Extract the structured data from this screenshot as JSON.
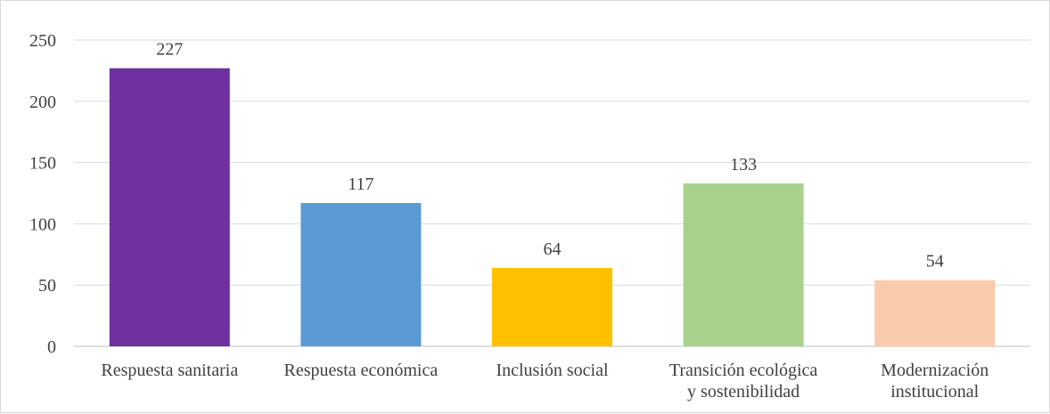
{
  "chart_data": {
    "type": "bar",
    "categories": [
      [
        "Respuesta sanitaria"
      ],
      [
        "Respuesta económica"
      ],
      [
        "Inclusión social"
      ],
      [
        "Transición ecológica",
        "y sostenibilidad"
      ],
      [
        "Modernización",
        "institucional"
      ]
    ],
    "values": [
      227,
      117,
      64,
      133,
      54
    ],
    "value_labels": [
      "227",
      "117",
      "64",
      "133",
      "54"
    ],
    "colors": [
      "#7030a0",
      "#5b9bd5",
      "#ffc000",
      "#a9d18e",
      "#f8cbad"
    ],
    "ylim": [
      0,
      250
    ],
    "yticks": [
      0,
      50,
      100,
      150,
      200,
      250
    ],
    "grid": true,
    "legend": "none",
    "title": "",
    "xlabel": "",
    "ylabel": ""
  }
}
